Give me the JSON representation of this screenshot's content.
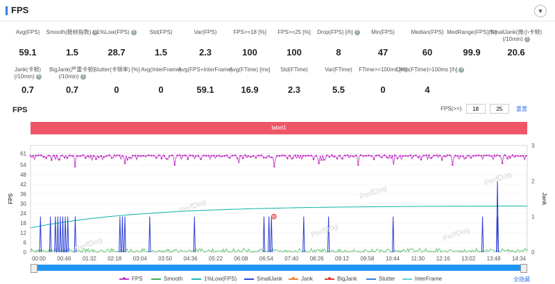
{
  "panel": {
    "title": "FPS",
    "toggle_icon": "chevron-down-icon"
  },
  "metrics_row1": [
    {
      "label": "Avg(FPS)",
      "value": "59.1",
      "help": false
    },
    {
      "label": "Smooth(稳帧指数)",
      "value": "1.5",
      "help": true
    },
    {
      "label": "1%Low(FPS)",
      "value": "28.7",
      "help": true
    },
    {
      "label": "Std(FPS)",
      "value": "1.5",
      "help": false
    },
    {
      "label": "Var(FPS)",
      "value": "2.3",
      "help": false
    },
    {
      "label": "FPS>=18 [%]",
      "value": "100",
      "help": false
    },
    {
      "label": "FPS>=25 [%]",
      "value": "100",
      "help": false
    },
    {
      "label": "Drop(FPS) [/h]",
      "value": "8",
      "help": true
    },
    {
      "label": "Min(FPS)",
      "value": "47",
      "help": false
    },
    {
      "label": "Median(FPS)",
      "value": "60",
      "help": false
    },
    {
      "label": "MedRange(FPS)[%]",
      "value": "99.9",
      "help": false
    },
    {
      "label": "SmallJank(微小卡顿)",
      "label2": "(/10min)",
      "value": "20.6",
      "help": true
    }
  ],
  "metrics_row2": [
    {
      "label": "Jank(卡顿)",
      "label2": "(/10min)",
      "value": "0.7",
      "help": true
    },
    {
      "label": "BigJank(严重卡顿)",
      "label2": "(/10min)",
      "value": "0.7",
      "help": true
    },
    {
      "label": "Stutter(卡顿率) [%]",
      "value": "0",
      "help": false
    },
    {
      "label": "Avg(InterFrame)",
      "value": "0",
      "help": false
    },
    {
      "label": "Avg(FPS+InterFrame)",
      "value": "59.1",
      "help": false
    },
    {
      "label": "Avg(FTime) [ms]",
      "value": "16.9",
      "help": false
    },
    {
      "label": "Std(FTime)",
      "value": "2.3",
      "help": false
    },
    {
      "label": "Var(FTime)",
      "value": "5.5",
      "help": false
    },
    {
      "label": "FTime>=100ms [%]",
      "value": "0",
      "help": false
    },
    {
      "label": "Delta(FTime)>100ms [/h]",
      "value": "4",
      "help": true
    }
  ],
  "fps_section": {
    "title": "FPS",
    "threshold_label": "FPS(>=)",
    "threshold_1": "18",
    "threshold_2": "25",
    "reset_label": "重置"
  },
  "label_band": "label1",
  "watermark": "PerfDog",
  "hide_all": "全隐藏",
  "chart_data": {
    "type": "line",
    "ylabel": "FPS",
    "y2label": "Jank",
    "y_ticks": [
      0,
      6,
      12,
      18,
      24,
      30,
      36,
      42,
      48,
      54,
      61
    ],
    "y2_ticks": [
      0,
      1,
      2,
      3
    ],
    "ylim": [
      0,
      66
    ],
    "y2lim": [
      0,
      3
    ],
    "x_ticks": [
      "00:00",
      "00:46",
      "01:32",
      "02:18",
      "03:04",
      "03:50",
      "04:36",
      "05:22",
      "06:08",
      "06:54",
      "07:40",
      "08:26",
      "09:12",
      "09:58",
      "10:44",
      "11:30",
      "12:16",
      "13:02",
      "13:48",
      "14:34"
    ],
    "series": [
      {
        "name": "FPS",
        "color": "#c236c6",
        "typical": 60,
        "dips": [
          {
            "t": 0.09,
            "v": 53
          },
          {
            "t": 0.19,
            "v": 55
          },
          {
            "t": 0.29,
            "v": 54
          },
          {
            "t": 0.42,
            "v": 55
          },
          {
            "t": 0.49,
            "v": 53
          },
          {
            "t": 0.58,
            "v": 55
          },
          {
            "t": 0.66,
            "v": 54
          },
          {
            "t": 0.73,
            "v": 54
          },
          {
            "t": 0.85,
            "v": 54
          },
          {
            "t": 0.95,
            "v": 55
          }
        ]
      },
      {
        "name": "Smooth",
        "color": "#3bb04e",
        "typical": 2
      },
      {
        "name": "1%Low(FPS)",
        "color": "#1eb8b0",
        "start": 15,
        "end": 28.7
      },
      {
        "name": "SmallJank",
        "color": "#2c3ed4",
        "spike_times": [
          0.02,
          0.04,
          0.05,
          0.055,
          0.06,
          0.065,
          0.07,
          0.075,
          0.09,
          0.18,
          0.185,
          0.19,
          0.24,
          0.33,
          0.47,
          0.48,
          0.485,
          0.55,
          0.6,
          0.73,
          0.91,
          0.94
        ],
        "spike_jank": 1
      },
      {
        "name": "Jank",
        "color": "#f07d2e"
      },
      {
        "name": "BigJank",
        "color": "#e53935",
        "mark_time": 0.49,
        "mark_value": 1
      },
      {
        "name": "Stutter",
        "color": "#2a82d8"
      },
      {
        "name": "InterFrame",
        "color": "#5fd1d0"
      }
    ],
    "big_jank_peak": {
      "t": 0.94,
      "jank": 2
    }
  }
}
